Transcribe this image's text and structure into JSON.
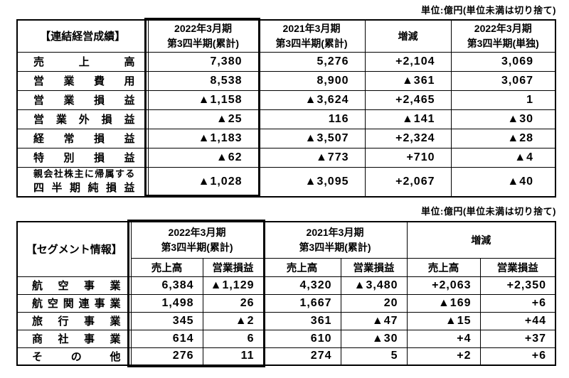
{
  "page": {
    "unit_note_top": "単位:億円(単位未満は切り捨て)",
    "unit_note_bottom": "単位:億円(単位未満は切り捨て)"
  },
  "consolidated": {
    "title": "【連結経営成績】",
    "columns": [
      {
        "line1": "2022年3月期",
        "line2": "第3四半期(累計)"
      },
      {
        "line1": "2021年3月期",
        "line2": "第3四半期(累計)"
      },
      {
        "line1": "増減",
        "line2": ""
      },
      {
        "line1": "2022年3月期",
        "line2": "第3四半期(単独)"
      }
    ],
    "rows": [
      {
        "label": "売上高",
        "values": [
          "7,380",
          "5,276",
          "+2,104",
          "3,069"
        ]
      },
      {
        "label": "営業費用",
        "values": [
          "8,538",
          "8,900",
          "▲361",
          "3,067"
        ]
      },
      {
        "label": "営業損益",
        "values": [
          "▲1,158",
          "▲3,624",
          "+2,465",
          "1"
        ]
      },
      {
        "label": "営業外損益",
        "values": [
          "▲25",
          "116",
          "▲141",
          "▲30"
        ]
      },
      {
        "label": "経常損益",
        "values": [
          "▲1,183",
          "▲3,507",
          "+2,324",
          "▲28"
        ]
      },
      {
        "label": "特別損益",
        "values": [
          "▲62",
          "▲773",
          "+710",
          "▲4"
        ]
      },
      {
        "label": "親会社株主に帰属する",
        "label2": "四半期純損益",
        "values": [
          "▲1,028",
          "▲3,095",
          "+2,067",
          "▲40"
        ]
      }
    ]
  },
  "segments": {
    "title": "【セグメント情報】",
    "columns": [
      {
        "line1": "2022年3月期",
        "line2": "第3四半期(累計)"
      },
      {
        "line1": "2021年3月期",
        "line2": "第3四半期(累計)"
      },
      {
        "line1": "増減",
        "line2": ""
      }
    ],
    "sub_headers": {
      "sales": "売上高",
      "op": "営業損益"
    },
    "rows": [
      {
        "label": "航空事業",
        "values": [
          "6,384",
          "▲1,129",
          "4,320",
          "▲3,480",
          "+2,063",
          "+2,350"
        ]
      },
      {
        "label": "航空関連事業",
        "values": [
          "1,498",
          "26",
          "1,667",
          "20",
          "▲169",
          "+6"
        ]
      },
      {
        "label": "旅行事業",
        "values": [
          "345",
          "▲2",
          "361",
          "▲47",
          "▲15",
          "+44"
        ]
      },
      {
        "label": "商社事業",
        "values": [
          "614",
          "6",
          "610",
          "▲30",
          "+4",
          "+37"
        ]
      },
      {
        "label": "その他",
        "values": [
          "276",
          "11",
          "274",
          "5",
          "+2",
          "+6"
        ]
      }
    ]
  }
}
